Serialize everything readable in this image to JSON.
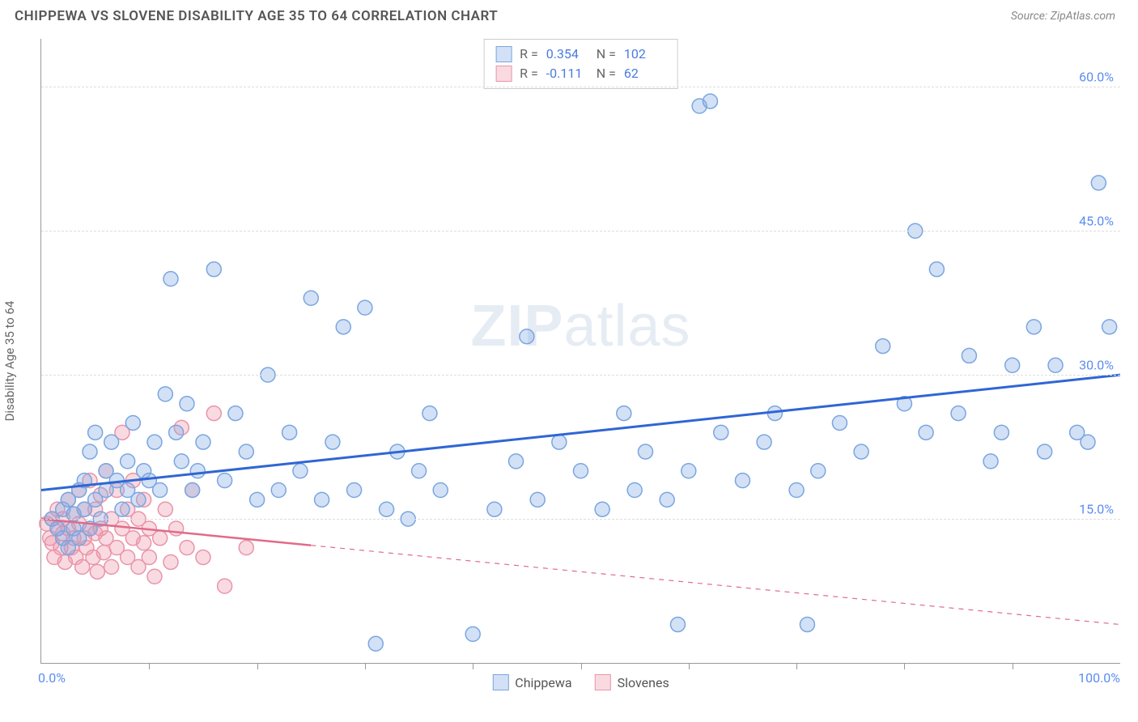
{
  "title": "CHIPPEWA VS SLOVENE DISABILITY AGE 35 TO 64 CORRELATION CHART",
  "source_prefix": "Source: ",
  "source_name": "ZipAtlas.com",
  "ylabel": "Disability Age 35 to 64",
  "watermark_bold": "ZIP",
  "watermark_rest": "atlas",
  "chart": {
    "type": "scatter",
    "xlim": [
      0,
      100
    ],
    "ylim": [
      0,
      65
    ],
    "x_origin_label": "0.0%",
    "x_max_label": "100.0%",
    "y_ticks": [
      15.0,
      30.0,
      45.0,
      60.0
    ],
    "y_tick_labels": [
      "15.0%",
      "30.0%",
      "45.0%",
      "60.0%"
    ],
    "x_minor_ticks": [
      10,
      20,
      30,
      40,
      50,
      60,
      70,
      80,
      90
    ],
    "grid_color": "#dddddd",
    "background_color": "#ffffff",
    "marker_radius": 9,
    "marker_stroke_width": 1.5,
    "series": {
      "chippewa": {
        "label": "Chippewa",
        "fill": "rgba(130,170,230,0.35)",
        "stroke": "#7aa6e0",
        "trend_color": "#2f66d4",
        "trend_width": 3,
        "trend": {
          "x1": 0,
          "y1": 18.0,
          "x2": 100,
          "y2": 30.0
        },
        "R": "0.354",
        "N": "102",
        "points": [
          [
            1,
            15
          ],
          [
            1.5,
            14
          ],
          [
            2,
            13
          ],
          [
            2,
            16
          ],
          [
            2.5,
            12
          ],
          [
            2.5,
            17
          ],
          [
            3,
            14
          ],
          [
            3,
            15.5
          ],
          [
            3.5,
            13
          ],
          [
            3.5,
            18
          ],
          [
            4,
            16
          ],
          [
            4,
            19
          ],
          [
            4.5,
            14
          ],
          [
            4.5,
            22
          ],
          [
            5,
            17
          ],
          [
            5,
            24
          ],
          [
            5.5,
            15
          ],
          [
            6,
            18
          ],
          [
            6,
            20
          ],
          [
            6.5,
            23
          ],
          [
            7,
            19
          ],
          [
            7.5,
            16
          ],
          [
            8,
            21
          ],
          [
            8,
            18
          ],
          [
            8.5,
            25
          ],
          [
            9,
            17
          ],
          [
            9.5,
            20
          ],
          [
            10,
            19
          ],
          [
            10.5,
            23
          ],
          [
            11,
            18
          ],
          [
            11.5,
            28
          ],
          [
            12,
            40
          ],
          [
            12.5,
            24
          ],
          [
            13,
            21
          ],
          [
            13.5,
            27
          ],
          [
            14,
            18
          ],
          [
            14.5,
            20
          ],
          [
            15,
            23
          ],
          [
            16,
            41
          ],
          [
            17,
            19
          ],
          [
            18,
            26
          ],
          [
            19,
            22
          ],
          [
            20,
            17
          ],
          [
            21,
            30
          ],
          [
            22,
            18
          ],
          [
            23,
            24
          ],
          [
            24,
            20
          ],
          [
            25,
            38
          ],
          [
            26,
            17
          ],
          [
            27,
            23
          ],
          [
            28,
            35
          ],
          [
            29,
            18
          ],
          [
            30,
            37
          ],
          [
            31,
            2
          ],
          [
            32,
            16
          ],
          [
            33,
            22
          ],
          [
            34,
            15
          ],
          [
            35,
            20
          ],
          [
            36,
            26
          ],
          [
            37,
            18
          ],
          [
            40,
            3
          ],
          [
            42,
            16
          ],
          [
            44,
            21
          ],
          [
            45,
            34
          ],
          [
            46,
            17
          ],
          [
            48,
            23
          ],
          [
            50,
            20
          ],
          [
            52,
            16
          ],
          [
            54,
            26
          ],
          [
            55,
            18
          ],
          [
            56,
            22
          ],
          [
            58,
            17
          ],
          [
            59,
            4
          ],
          [
            60,
            20
          ],
          [
            61,
            58
          ],
          [
            62,
            58.5
          ],
          [
            63,
            24
          ],
          [
            65,
            19
          ],
          [
            67,
            23
          ],
          [
            68,
            26
          ],
          [
            70,
            18
          ],
          [
            71,
            4
          ],
          [
            72,
            20
          ],
          [
            74,
            25
          ],
          [
            76,
            22
          ],
          [
            78,
            33
          ],
          [
            80,
            27
          ],
          [
            81,
            45
          ],
          [
            82,
            24
          ],
          [
            83,
            41
          ],
          [
            85,
            26
          ],
          [
            86,
            32
          ],
          [
            88,
            21
          ],
          [
            89,
            24
          ],
          [
            90,
            31
          ],
          [
            92,
            35
          ],
          [
            93,
            22
          ],
          [
            94,
            31
          ],
          [
            96,
            24
          ],
          [
            97,
            23
          ],
          [
            98,
            50
          ],
          [
            99,
            35
          ]
        ]
      },
      "slovenes": {
        "label": "Slovenes",
        "fill": "rgba(240,150,170,0.35)",
        "stroke": "#e895aa",
        "trend_color": "#e06b89",
        "trend_width": 2.5,
        "trend_solid_until_x": 25,
        "trend": {
          "x1": 0,
          "y1": 15.0,
          "x2": 100,
          "y2": 4.0
        },
        "R": "-0.111",
        "N": "62",
        "points": [
          [
            0.5,
            14.5
          ],
          [
            0.8,
            13
          ],
          [
            1,
            15
          ],
          [
            1,
            12.5
          ],
          [
            1.2,
            11
          ],
          [
            1.5,
            14
          ],
          [
            1.5,
            16
          ],
          [
            1.8,
            12
          ],
          [
            2,
            13.5
          ],
          [
            2,
            15
          ],
          [
            2.2,
            10.5
          ],
          [
            2.5,
            14
          ],
          [
            2.5,
            17
          ],
          [
            2.8,
            12
          ],
          [
            3,
            13
          ],
          [
            3,
            15.5
          ],
          [
            3.2,
            11
          ],
          [
            3.5,
            14.5
          ],
          [
            3.5,
            18
          ],
          [
            3.8,
            10
          ],
          [
            4,
            13
          ],
          [
            4,
            16
          ],
          [
            4.2,
            12
          ],
          [
            4.5,
            14
          ],
          [
            4.5,
            19
          ],
          [
            4.8,
            11
          ],
          [
            5,
            13.5
          ],
          [
            5,
            16
          ],
          [
            5.2,
            9.5
          ],
          [
            5.5,
            14
          ],
          [
            5.5,
            17.5
          ],
          [
            5.8,
            11.5
          ],
          [
            6,
            13
          ],
          [
            6,
            20
          ],
          [
            6.5,
            10
          ],
          [
            6.5,
            15
          ],
          [
            7,
            12
          ],
          [
            7,
            18
          ],
          [
            7.5,
            14
          ],
          [
            7.5,
            24
          ],
          [
            8,
            11
          ],
          [
            8,
            16
          ],
          [
            8.5,
            13
          ],
          [
            8.5,
            19
          ],
          [
            9,
            10
          ],
          [
            9,
            15
          ],
          [
            9.5,
            12.5
          ],
          [
            9.5,
            17
          ],
          [
            10,
            11
          ],
          [
            10,
            14
          ],
          [
            10.5,
            9
          ],
          [
            11,
            13
          ],
          [
            11.5,
            16
          ],
          [
            12,
            10.5
          ],
          [
            12.5,
            14
          ],
          [
            13,
            24.5
          ],
          [
            13.5,
            12
          ],
          [
            14,
            18
          ],
          [
            15,
            11
          ],
          [
            16,
            26
          ],
          [
            17,
            8
          ],
          [
            19,
            12
          ]
        ]
      }
    }
  },
  "legend": {
    "stats_rows": [
      {
        "swatch_fill": "rgba(130,170,230,0.35)",
        "swatch_stroke": "#7aa6e0",
        "R": "0.354",
        "N": "102"
      },
      {
        "swatch_fill": "rgba(240,150,170,0.35)",
        "swatch_stroke": "#e895aa",
        "R": "-0.111",
        "N": "62"
      }
    ],
    "bottom": [
      {
        "label": "Chippewa",
        "fill": "rgba(130,170,230,0.35)",
        "stroke": "#7aa6e0"
      },
      {
        "label": "Slovenes",
        "fill": "rgba(240,150,170,0.35)",
        "stroke": "#e895aa"
      }
    ]
  }
}
